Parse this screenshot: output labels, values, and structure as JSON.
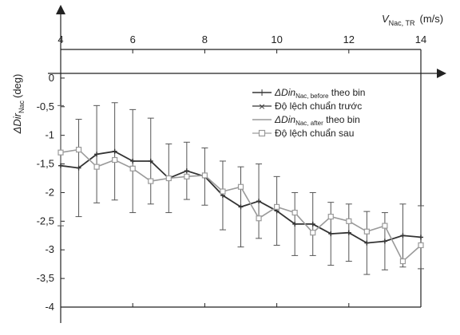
{
  "chart_data": {
    "type": "line",
    "xlabel": {
      "main": "V",
      "sub": "Nac, TR",
      "unit": "(m/s)"
    },
    "ylabel": {
      "main": "ΔDir",
      "sub": "Nac",
      "unit": "(deg)"
    },
    "xlim": [
      4,
      14
    ],
    "ylim": [
      -4,
      0.5
    ],
    "xticks": [
      "4",
      "6",
      "8",
      "10",
      "12",
      "14"
    ],
    "yticks": [
      "0",
      "-0,5",
      "-1",
      "-1,5",
      "-2",
      "-2,5",
      "-3",
      "-3,5",
      "-4"
    ],
    "x": [
      4.0,
      4.5,
      5.0,
      5.5,
      6.0,
      6.5,
      7.0,
      7.5,
      8.0,
      8.5,
      9.0,
      9.5,
      10.0,
      10.5,
      11.0,
      11.5,
      12.0,
      12.5,
      13.0,
      13.5,
      14.0
    ],
    "series": [
      {
        "name": "ΔDinNac, before theo bin",
        "legend_main": "ΔDin",
        "legend_sub": "Nac, before",
        "legend_rest": " theo bin",
        "std_name": "Độ lệch chuẩn trước",
        "color": "#333333",
        "marker": "plus",
        "values": [
          -1.53,
          -1.57,
          -1.33,
          -1.28,
          -1.45,
          -1.45,
          -1.75,
          -1.62,
          -1.72,
          -2.05,
          -2.25,
          -2.15,
          -2.32,
          -2.55,
          -2.55,
          -2.72,
          -2.7,
          -2.88,
          -2.85,
          -2.75,
          -2.78
        ],
        "std": [
          1.05,
          0.85,
          0.85,
          0.85,
          0.9,
          0.75,
          0.6,
          0.5,
          0.5,
          0.6,
          0.7,
          0.65,
          0.6,
          0.55,
          0.55,
          0.55,
          0.5,
          0.55,
          0.5,
          0.55,
          0.55
        ]
      },
      {
        "name": "ΔDinNac, after theo bin",
        "legend_main": "ΔDin",
        "legend_sub": "Nac, after",
        "legend_rest": " theo bin",
        "std_name": "Độ lệch chuẩn sau",
        "color": "#9a9a9a",
        "marker": "square",
        "values": [
          -1.3,
          -1.25,
          -1.55,
          -1.43,
          -1.58,
          -1.8,
          -1.75,
          -1.72,
          -1.7,
          -1.98,
          -1.9,
          -2.45,
          -2.25,
          -2.35,
          -2.7,
          -2.42,
          -2.5,
          -2.68,
          -2.58,
          -3.2,
          -2.92
        ]
      }
    ]
  }
}
